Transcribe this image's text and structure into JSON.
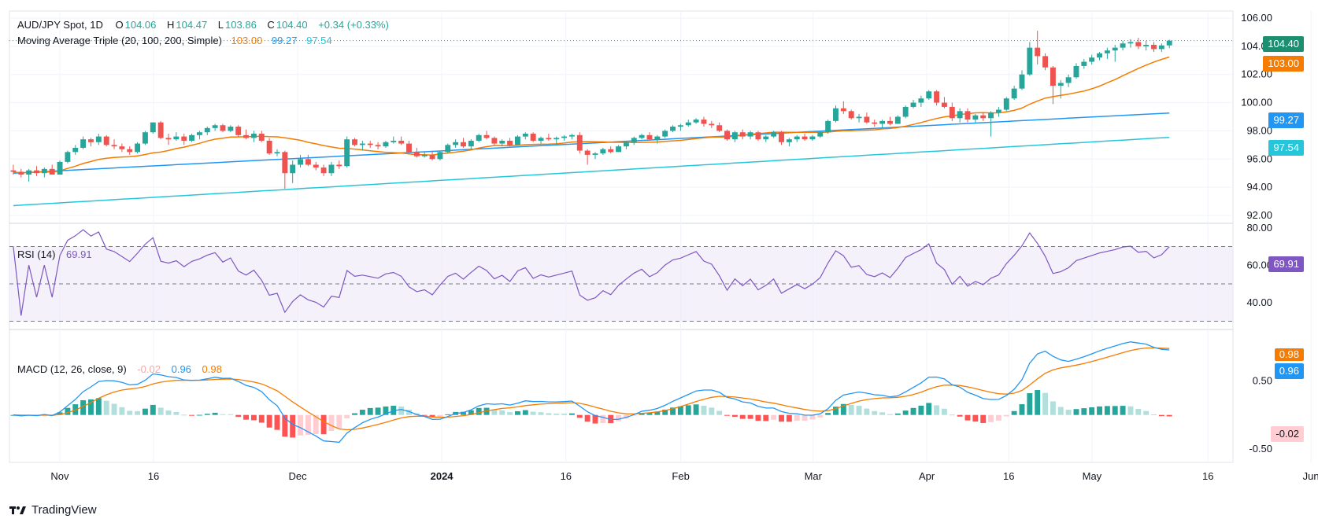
{
  "colors": {
    "up": "#26a69a",
    "down": "#ef5350",
    "ma20": "#f57c00",
    "ma100": "#2196f3",
    "ma200": "#26c6da",
    "rsi": "#7e57c2",
    "macd": "#2196f3",
    "signal": "#f57c00",
    "hist_up_strong": "#26a69a",
    "hist_up_weak": "#b2dfdb",
    "hist_down_strong": "#ff5252",
    "hist_down_weak": "#ffcdd2"
  },
  "header": {
    "symbol": "AUD/JPY Spot, 1D",
    "o_label": "O",
    "o_val": "104.06",
    "h_label": "H",
    "h_val": "104.47",
    "l_label": "L",
    "l_val": "103.86",
    "c_label": "C",
    "c_val": "104.40",
    "change": "+0.34 (+0.33%)",
    "ma_title": "Moving Average Triple (20, 100, 200, Simple)",
    "ma20": "103.00",
    "ma100": "99.27",
    "ma200": "97.54"
  },
  "rsi_legend": {
    "title": "RSI (14)",
    "value": "69.91"
  },
  "macd_legend": {
    "title": "MACD (12, 26, close, 9)",
    "hist": "-0.02",
    "macd": "0.96",
    "signal": "0.98"
  },
  "price_tags": {
    "last": "104.40",
    "ma20": "103.00",
    "ma100": "99.27",
    "ma200": "97.54"
  },
  "rsi_tag": "69.91",
  "macd_tags": {
    "signal": "0.98",
    "macd": "0.96",
    "hist": "-0.02"
  },
  "watermark": "TradingView",
  "chart_data": {
    "type": "candlestick",
    "title": "AUD/JPY Spot, 1D",
    "price_axis": {
      "ticks": [
        "106.00",
        "104.00",
        "102.00",
        "100.00",
        "98.00",
        "96.00",
        "94.00",
        "92.00"
      ],
      "ylim": [
        91.5,
        106.5
      ]
    },
    "rsi_axis": {
      "ticks": [
        "80.00",
        "60.00",
        "40.00"
      ],
      "ylim": [
        26,
        82
      ],
      "bands": [
        30,
        50,
        70
      ]
    },
    "macd_axis": {
      "ticks": [
        "0.50",
        "-0.50"
      ],
      "ylim": [
        -0.7,
        1.25
      ]
    },
    "time_axis": {
      "labels": [
        "Nov",
        "16",
        "Dec",
        "2024",
        "16",
        "Feb",
        "Mar",
        "Apr",
        "16",
        "May",
        "16",
        "Jun"
      ]
    },
    "candles": [
      [
        95.2,
        95.6,
        94.9,
        95.1
      ],
      [
        95.1,
        95.3,
        94.7,
        94.9
      ],
      [
        94.9,
        95.3,
        94.4,
        95.2
      ],
      [
        95.2,
        95.5,
        94.8,
        95.0
      ],
      [
        95.0,
        95.4,
        94.7,
        95.3
      ],
      [
        95.3,
        95.6,
        94.9,
        94.9
      ],
      [
        94.9,
        95.9,
        94.9,
        95.8
      ],
      [
        95.8,
        96.6,
        95.7,
        96.5
      ],
      [
        96.5,
        97.0,
        96.3,
        96.8
      ],
      [
        96.8,
        97.6,
        96.7,
        97.4
      ],
      [
        97.4,
        97.5,
        96.9,
        97.2
      ],
      [
        97.2,
        97.8,
        97.0,
        97.6
      ],
      [
        97.6,
        97.7,
        96.9,
        97.0
      ],
      [
        97.0,
        97.4,
        96.7,
        96.9
      ],
      [
        96.9,
        97.1,
        96.5,
        96.7
      ],
      [
        96.7,
        96.9,
        96.3,
        96.5
      ],
      [
        96.5,
        97.2,
        96.4,
        97.1
      ],
      [
        97.1,
        98.0,
        97.0,
        97.9
      ],
      [
        97.9,
        98.6,
        97.8,
        98.6
      ],
      [
        98.6,
        98.7,
        97.4,
        97.5
      ],
      [
        97.5,
        97.8,
        97.0,
        97.4
      ],
      [
        97.4,
        97.9,
        97.3,
        97.6
      ],
      [
        97.6,
        97.8,
        97.0,
        97.3
      ],
      [
        97.3,
        97.8,
        97.2,
        97.7
      ],
      [
        97.7,
        98.0,
        97.4,
        97.9
      ],
      [
        97.9,
        98.3,
        97.7,
        98.2
      ],
      [
        98.2,
        98.5,
        98.0,
        98.4
      ],
      [
        98.4,
        98.5,
        97.9,
        98.0
      ],
      [
        98.0,
        98.4,
        97.9,
        98.3
      ],
      [
        98.3,
        98.4,
        97.6,
        97.7
      ],
      [
        97.7,
        98.1,
        97.4,
        97.5
      ],
      [
        97.5,
        98.0,
        97.2,
        97.8
      ],
      [
        97.8,
        98.0,
        97.2,
        97.3
      ],
      [
        97.3,
        97.5,
        96.3,
        96.4
      ],
      [
        96.4,
        96.7,
        96.2,
        96.5
      ],
      [
        96.5,
        96.6,
        93.9,
        95.0
      ],
      [
        95.0,
        95.9,
        94.3,
        95.6
      ],
      [
        95.6,
        96.3,
        95.4,
        96.0
      ],
      [
        96.0,
        96.3,
        95.5,
        95.6
      ],
      [
        95.6,
        95.8,
        95.2,
        95.4
      ],
      [
        95.4,
        95.6,
        94.8,
        95.0
      ],
      [
        95.0,
        95.8,
        94.8,
        95.6
      ],
      [
        95.6,
        95.9,
        95.3,
        95.5
      ],
      [
        95.5,
        97.6,
        95.4,
        97.4
      ],
      [
        97.4,
        97.5,
        96.9,
        97.0
      ],
      [
        97.0,
        97.3,
        96.6,
        97.1
      ],
      [
        97.1,
        97.3,
        96.8,
        97.0
      ],
      [
        97.0,
        97.2,
        96.7,
        96.9
      ],
      [
        96.9,
        97.3,
        96.8,
        97.2
      ],
      [
        97.2,
        97.6,
        97.1,
        97.3
      ],
      [
        97.3,
        97.6,
        97.0,
        97.1
      ],
      [
        97.1,
        97.3,
        96.4,
        96.5
      ],
      [
        96.5,
        96.8,
        96.1,
        96.2
      ],
      [
        96.2,
        96.5,
        96.1,
        96.3
      ],
      [
        96.3,
        96.6,
        95.9,
        96.0
      ],
      [
        96.0,
        96.6,
        95.9,
        96.5
      ],
      [
        96.5,
        97.1,
        96.4,
        97.0
      ],
      [
        97.0,
        97.4,
        96.8,
        97.2
      ],
      [
        97.2,
        97.5,
        96.8,
        96.9
      ],
      [
        96.9,
        97.4,
        96.7,
        97.3
      ],
      [
        97.3,
        97.8,
        97.2,
        97.7
      ],
      [
        97.7,
        98.0,
        97.4,
        97.5
      ],
      [
        97.5,
        97.6,
        97.0,
        97.1
      ],
      [
        97.1,
        97.4,
        96.9,
        97.3
      ],
      [
        97.3,
        97.5,
        96.9,
        97.0
      ],
      [
        97.0,
        97.7,
        97.0,
        97.6
      ],
      [
        97.6,
        97.9,
        97.4,
        97.8
      ],
      [
        97.8,
        97.9,
        97.2,
        97.3
      ],
      [
        97.3,
        97.6,
        97.1,
        97.5
      ],
      [
        97.5,
        97.8,
        97.3,
        97.4
      ],
      [
        97.4,
        97.6,
        97.1,
        97.5
      ],
      [
        97.5,
        97.7,
        97.3,
        97.6
      ],
      [
        97.6,
        97.8,
        97.4,
        97.7
      ],
      [
        97.7,
        97.9,
        96.4,
        96.6
      ],
      [
        96.6,
        96.7,
        95.6,
        96.3
      ],
      [
        96.3,
        96.5,
        96.0,
        96.4
      ],
      [
        96.4,
        96.8,
        96.3,
        96.7
      ],
      [
        96.7,
        96.9,
        96.4,
        96.5
      ],
      [
        96.5,
        97.0,
        96.5,
        96.9
      ],
      [
        96.9,
        97.3,
        96.7,
        97.2
      ],
      [
        97.2,
        97.6,
        97.0,
        97.5
      ],
      [
        97.5,
        97.8,
        97.4,
        97.7
      ],
      [
        97.7,
        97.9,
        97.3,
        97.4
      ],
      [
        97.4,
        97.7,
        97.1,
        97.6
      ],
      [
        97.6,
        98.1,
        97.5,
        98.0
      ],
      [
        98.0,
        98.4,
        97.9,
        98.3
      ],
      [
        98.3,
        98.5,
        98.0,
        98.4
      ],
      [
        98.4,
        98.8,
        98.3,
        98.6
      ],
      [
        98.6,
        98.9,
        98.5,
        98.8
      ],
      [
        98.8,
        99.0,
        98.3,
        98.5
      ],
      [
        98.5,
        98.7,
        98.2,
        98.4
      ],
      [
        98.4,
        98.6,
        97.9,
        98.0
      ],
      [
        98.0,
        98.1,
        97.3,
        97.4
      ],
      [
        97.4,
        98.0,
        97.2,
        97.9
      ],
      [
        97.9,
        98.1,
        97.4,
        97.6
      ],
      [
        97.6,
        98.0,
        97.4,
        97.9
      ],
      [
        97.9,
        98.0,
        97.3,
        97.4
      ],
      [
        97.4,
        97.7,
        97.2,
        97.6
      ],
      [
        97.6,
        98.0,
        97.5,
        97.9
      ],
      [
        97.9,
        98.0,
        97.0,
        97.2
      ],
      [
        97.2,
        97.5,
        96.9,
        97.4
      ],
      [
        97.4,
        97.7,
        97.2,
        97.6
      ],
      [
        97.6,
        97.8,
        97.3,
        97.4
      ],
      [
        97.4,
        97.7,
        97.3,
        97.6
      ],
      [
        97.6,
        98.0,
        97.5,
        97.9
      ],
      [
        97.9,
        98.8,
        97.8,
        98.7
      ],
      [
        98.7,
        99.8,
        98.6,
        99.6
      ],
      [
        99.6,
        100.1,
        99.2,
        99.4
      ],
      [
        99.4,
        99.5,
        98.8,
        98.9
      ],
      [
        98.9,
        99.2,
        98.6,
        99.0
      ],
      [
        99.0,
        99.3,
        98.5,
        98.6
      ],
      [
        98.6,
        98.8,
        98.3,
        98.5
      ],
      [
        98.5,
        98.8,
        98.2,
        98.7
      ],
      [
        98.7,
        99.0,
        98.4,
        98.5
      ],
      [
        98.5,
        99.1,
        98.5,
        99.0
      ],
      [
        99.0,
        99.8,
        98.9,
        99.7
      ],
      [
        99.7,
        100.2,
        99.6,
        100.0
      ],
      [
        100.0,
        100.5,
        99.7,
        100.3
      ],
      [
        100.3,
        100.9,
        100.2,
        100.8
      ],
      [
        100.8,
        100.9,
        99.8,
        100.0
      ],
      [
        100.0,
        100.4,
        99.6,
        99.7
      ],
      [
        99.7,
        100.0,
        98.7,
        98.9
      ],
      [
        98.9,
        99.6,
        98.6,
        99.4
      ],
      [
        99.4,
        99.6,
        98.6,
        98.8
      ],
      [
        98.8,
        99.2,
        98.6,
        99.1
      ],
      [
        99.1,
        99.3,
        98.7,
        98.9
      ],
      [
        98.9,
        99.4,
        97.6,
        99.3
      ],
      [
        99.3,
        99.7,
        99.0,
        99.5
      ],
      [
        99.5,
        100.4,
        99.4,
        100.3
      ],
      [
        100.3,
        101.2,
        100.2,
        101.0
      ],
      [
        101.0,
        102.3,
        100.9,
        102.0
      ],
      [
        102.0,
        104.3,
        101.9,
        103.9
      ],
      [
        103.9,
        105.1,
        102.7,
        103.3
      ],
      [
        103.3,
        103.5,
        102.3,
        102.5
      ],
      [
        102.5,
        102.6,
        99.9,
        101.2
      ],
      [
        101.2,
        101.6,
        100.3,
        101.4
      ],
      [
        101.4,
        102.0,
        101.1,
        101.8
      ],
      [
        101.8,
        102.8,
        101.7,
        102.6
      ],
      [
        102.6,
        103.1,
        102.4,
        102.9
      ],
      [
        102.9,
        103.4,
        102.7,
        103.2
      ],
      [
        103.2,
        103.6,
        103.0,
        103.5
      ],
      [
        103.5,
        103.9,
        103.1,
        103.7
      ],
      [
        103.7,
        104.1,
        102.9,
        103.9
      ],
      [
        103.9,
        104.4,
        103.7,
        104.2
      ],
      [
        104.2,
        104.5,
        103.9,
        104.3
      ],
      [
        104.3,
        104.6,
        103.8,
        104.0
      ],
      [
        104.0,
        104.4,
        103.7,
        104.1
      ],
      [
        104.1,
        104.3,
        103.6,
        103.8
      ],
      [
        103.8,
        104.2,
        103.6,
        104.06
      ],
      [
        104.06,
        104.47,
        103.86,
        104.4
      ]
    ],
    "series": [
      {
        "name": "MA 20",
        "last": 103.0
      },
      {
        "name": "MA 100",
        "last": 99.27
      },
      {
        "name": "MA 200",
        "last": 97.54
      },
      {
        "name": "RSI (14)",
        "last": 69.91
      },
      {
        "name": "MACD",
        "last": 0.96
      },
      {
        "name": "Signal",
        "last": 0.98
      },
      {
        "name": "Histogram",
        "last": -0.02
      }
    ]
  }
}
